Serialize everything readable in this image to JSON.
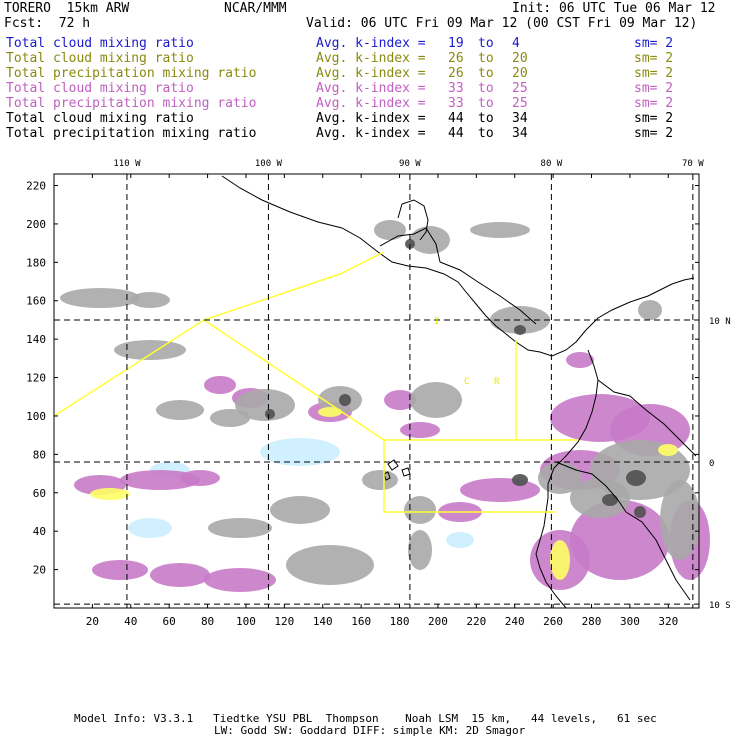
{
  "header": {
    "model": "TORERO  15km ARW",
    "center": "NCAR/MMM",
    "init": "Init: 06 UTC Tue 06 Mar 12",
    "fcst": "Fcst:  72 h",
    "valid": "Valid: 06 UTC Fri 09 Mar 12 (00 CST Fri 09 Mar 12)"
  },
  "legend": [
    {
      "field": "Total cloud mixing ratio",
      "kindex": "Avg. k-index =",
      "from": "19",
      "to_word": "to",
      "to": "4",
      "sm": "sm= 2",
      "color": "#1a1acc"
    },
    {
      "field": "Total cloud mixing ratio",
      "kindex": "Avg. k-index =",
      "from": "26",
      "to_word": "to",
      "to": "20",
      "sm": "sm= 2",
      "color": "#8a8a10"
    },
    {
      "field": "Total precipitation mixing ratio",
      "kindex": "Avg. k-index =",
      "from": "26",
      "to_word": "to",
      "to": "20",
      "sm": "sm= 2",
      "color": "#8a8a10"
    },
    {
      "field": "Total cloud mixing ratio",
      "kindex": "Avg. k-index =",
      "from": "33",
      "to_word": "to",
      "to": "25",
      "sm": "sm= 2",
      "color": "#c060c0"
    },
    {
      "field": "Total precipitation mixing ratio",
      "kindex": "Avg. k-index =",
      "from": "33",
      "to_word": "to",
      "to": "25",
      "sm": "sm= 2",
      "color": "#c060c0"
    },
    {
      "field": "Total cloud mixing ratio",
      "kindex": "Avg. k-index =",
      "from": "44",
      "to_word": "to",
      "to": "34",
      "sm": "sm= 2",
      "color": "#000000"
    },
    {
      "field": "Total precipitation mixing ratio",
      "kindex": "Avg. k-index =",
      "from": "44",
      "to_word": "to",
      "to": "34",
      "sm": "sm= 2",
      "color": "#000000"
    }
  ],
  "axes": {
    "top_lon_labels": [
      {
        "label": "110 W",
        "value": 110
      },
      {
        "label": "100 W",
        "value": 100
      },
      {
        "label": "90 W",
        "value": 90
      },
      {
        "label": "80 W",
        "value": 80
      },
      {
        "label": "70 W",
        "value": 70
      }
    ],
    "right_lat_labels": [
      {
        "label": "10 N",
        "value": 10
      },
      {
        "label": "0",
        "value": 0
      },
      {
        "label": "10 S",
        "value": -10
      }
    ],
    "x_ticks": [
      "20",
      "40",
      "60",
      "80",
      "100",
      "120",
      "140",
      "160",
      "180",
      "200",
      "220",
      "240",
      "260",
      "280",
      "300",
      "320"
    ],
    "y_ticks": [
      "20",
      "40",
      "60",
      "80",
      "100",
      "120",
      "140",
      "160",
      "180",
      "200",
      "220"
    ],
    "grid_x_range": [
      0,
      336
    ],
    "grid_y_range": [
      0,
      226
    ]
  },
  "map_labels": {
    "region_a": "C",
    "region_b": "R",
    "region_c": "I"
  },
  "colors": {
    "background": "#ffffff",
    "grid": "#000000",
    "border_yellow": "#ffff33",
    "light_blue": "#cceeff",
    "yellow_fill": "#ffff66",
    "magenta_fill": "#c87ac8",
    "gray_fill": "#a8a8a8",
    "dark_gray": "#505050",
    "coast": "#000000"
  },
  "footer": {
    "line1": "Model Info: V3.3.1   Tiedtke YSU PBL  Thompson    Noah LSM  15 km,   44 levels,   61 sec",
    "line2": "LW: Godd SW: Goddard DIFF: simple KM: 2D Smagor"
  }
}
